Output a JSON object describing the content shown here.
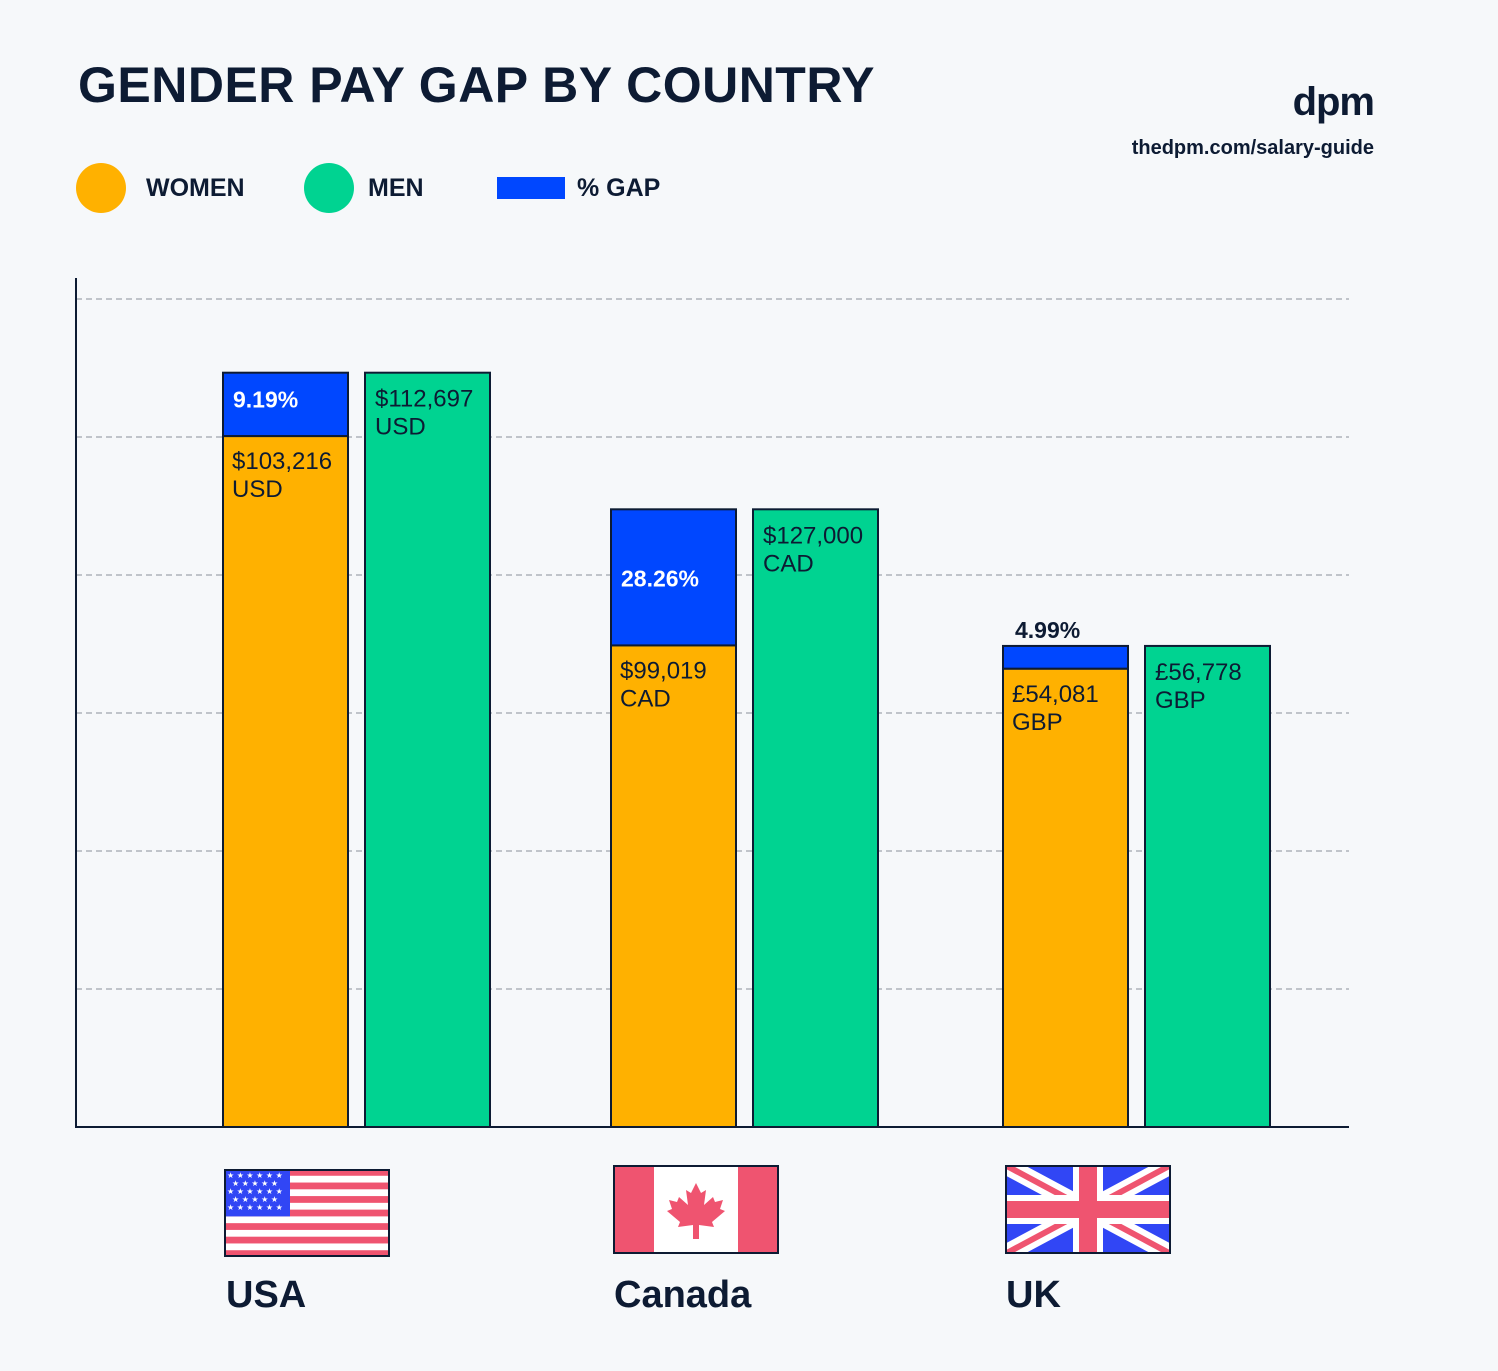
{
  "header": {
    "title": "GENDER PAY GAP BY COUNTRY",
    "brand_logo": "dpm",
    "brand_url": "thedpm.com/salary-guide"
  },
  "legend": [
    {
      "label": "WOMEN",
      "color": "#ffb100",
      "shape": "circle"
    },
    {
      "label": "MEN",
      "color": "#00d391",
      "shape": "circle"
    },
    {
      "label": "% GAP",
      "color": "#0047ff",
      "shape": "rect"
    }
  ],
  "colors": {
    "women": "#ffb100",
    "men": "#00d391",
    "gap": "#0047ff",
    "outline": "#0d1b33",
    "flag_red": "#ef5470",
    "flag_blue": "#3146f5"
  },
  "chart_data": {
    "type": "bar",
    "title": "GENDER PAY GAP BY COUNTRY",
    "categories": [
      "USA",
      "Canada",
      "UK"
    ],
    "series": [
      {
        "name": "WOMEN",
        "values": [
          103216,
          99019,
          54081
        ]
      },
      {
        "name": "MEN",
        "values": [
          112697,
          127000,
          56778
        ]
      },
      {
        "name": "% GAP",
        "values": [
          9.19,
          28.26,
          4.99
        ]
      }
    ],
    "bars": [
      {
        "country": "USA",
        "women_label": "$103,216",
        "women_currency": "USD",
        "men_label": "$112,697",
        "men_currency": "USD",
        "gap_label": "9.19%",
        "gap_fraction": 0.0841,
        "men_height_fraction": 0.911
      },
      {
        "country": "Canada",
        "women_label": "$99,019",
        "women_currency": "CAD",
        "men_label": "$127,000",
        "men_currency": "CAD",
        "gap_label": "28.26%",
        "gap_fraction": 0.2204,
        "men_height_fraction": 0.746
      },
      {
        "country": "UK",
        "women_label": "£54,081",
        "women_currency": "GBP",
        "men_label": "£56,778",
        "men_currency": "GBP",
        "gap_label": "4.99%",
        "gap_fraction": 0.0475,
        "men_height_fraction": 0.581
      }
    ],
    "grid": true,
    "gridlines": 6,
    "xlabel": "",
    "ylabel": ""
  },
  "countries": [
    {
      "name": "USA",
      "flag": "usa-flag"
    },
    {
      "name": "Canada",
      "flag": "canada-flag"
    },
    {
      "name": "UK",
      "flag": "uk-flag"
    }
  ]
}
